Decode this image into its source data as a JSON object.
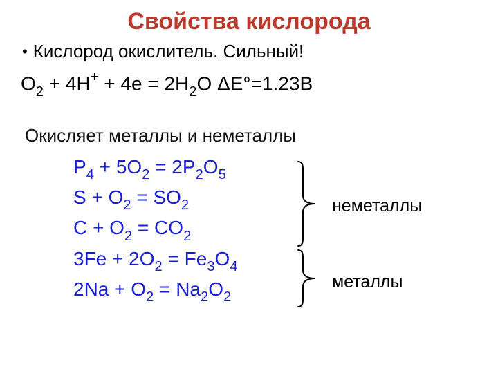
{
  "colors": {
    "title": "#bc3a2d",
    "body_text": "#000000",
    "heading_text": "#121212",
    "reaction_text": "#1a1fd0",
    "brace_stroke": "#000000",
    "background": "#ffffff"
  },
  "title": "Свойства кислорода",
  "bullet": "Кислород окислитель. Сильный!",
  "equation": {
    "parts": [
      {
        "t": "O"
      },
      {
        "t": "2",
        "sub": true
      },
      {
        "t": " + 4H"
      },
      {
        "t": "+",
        "sup": true
      },
      {
        "t": " + 4e = 2H"
      },
      {
        "t": "2",
        "sub": true
      },
      {
        "t": "O   ΔE°=1.23В"
      }
    ]
  },
  "section_heading": "Окисляет металлы и неметаллы",
  "reactions": [
    {
      "parts": [
        {
          "t": "P"
        },
        {
          "t": "4",
          "sub": true
        },
        {
          "t": " + 5O"
        },
        {
          "t": "2",
          "sub": true
        },
        {
          "t": " = 2P"
        },
        {
          "t": "2",
          "sub": true
        },
        {
          "t": "O"
        },
        {
          "t": "5",
          "sub": true
        }
      ]
    },
    {
      "parts": [
        {
          "t": "S + O"
        },
        {
          "t": "2",
          "sub": true
        },
        {
          "t": " = SO"
        },
        {
          "t": "2",
          "sub": true
        }
      ]
    },
    {
      "parts": [
        {
          "t": "C + O"
        },
        {
          "t": "2",
          "sub": true
        },
        {
          "t": " = CO"
        },
        {
          "t": "2",
          "sub": true
        }
      ]
    },
    {
      "parts": [
        {
          "t": "3Fe + 2O"
        },
        {
          "t": "2",
          "sub": true
        },
        {
          "t": " = Fe"
        },
        {
          "t": "3",
          "sub": true
        },
        {
          "t": "O"
        },
        {
          "t": "4",
          "sub": true
        }
      ]
    },
    {
      "parts": [
        {
          "t": "2Na + O"
        },
        {
          "t": "2",
          "sub": true
        },
        {
          "t": " = Na"
        },
        {
          "t": "2",
          "sub": true
        },
        {
          "t": "O"
        },
        {
          "t": "2",
          "sub": true
        }
      ]
    }
  ],
  "braces": [
    {
      "label": "неметаллы",
      "height": 126,
      "stroke_width": 2
    },
    {
      "label": "металлы",
      "height": 86,
      "stroke_width": 2
    }
  ],
  "typography": {
    "title_fontsize": 34,
    "body_fontsize": 26,
    "equation_fontsize": 28,
    "reaction_fontsize": 28,
    "brace_label_fontsize": 25,
    "font_family": "Arial"
  }
}
